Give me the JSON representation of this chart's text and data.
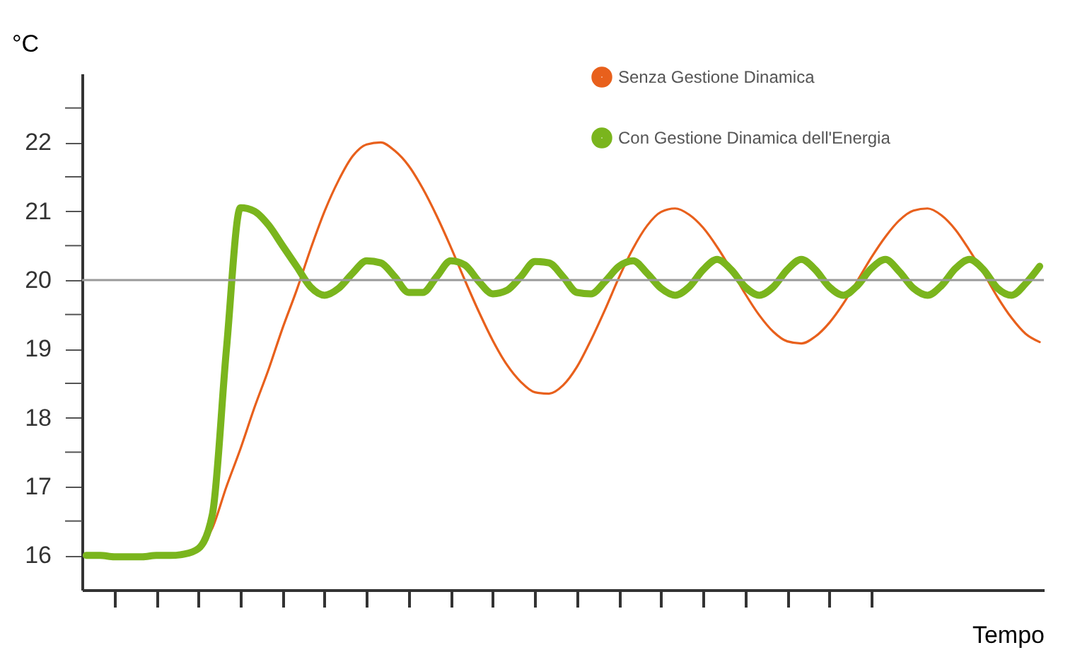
{
  "chart_data": {
    "type": "line",
    "xlabel": "Tempo",
    "ylabel": "°C",
    "categories": [
      null,
      null,
      null,
      null,
      null,
      null,
      null,
      null,
      null,
      null,
      null,
      null,
      null,
      null,
      null,
      null,
      null,
      null,
      null,
      null,
      null,
      null,
      null,
      null,
      null,
      null,
      null,
      null,
      null,
      null,
      null,
      null,
      null,
      null,
      null,
      null,
      null,
      null,
      null,
      null,
      null,
      null,
      null,
      null,
      null,
      null,
      null,
      null,
      null,
      null,
      null,
      null,
      null,
      null,
      null,
      null,
      null,
      null,
      null,
      null,
      null,
      null,
      null,
      null,
      null,
      null,
      null,
      null,
      null
    ],
    "series": [
      {
        "name": "Senza Gestione Dinamica",
        "color": "#e8601c",
        "values": [
          null,
          null,
          null,
          null,
          null,
          null,
          null,
          null,
          16.08,
          16.4,
          17.0,
          17.55,
          18.15,
          18.7,
          19.3,
          19.85,
          20.45,
          21.0,
          21.45,
          21.8,
          21.97,
          22.0,
          21.88,
          21.66,
          21.33,
          20.93,
          20.48,
          20.0,
          19.54,
          19.12,
          18.77,
          18.52,
          18.37,
          18.35,
          18.47,
          18.74,
          19.13,
          19.57,
          20.04,
          20.46,
          20.79,
          20.99,
          21.04,
          20.95,
          20.76,
          20.48,
          20.15,
          19.8,
          19.49,
          19.25,
          19.11,
          19.08,
          19.18,
          19.38,
          19.66,
          19.99,
          20.33,
          20.63,
          20.87,
          21.01,
          21.04,
          20.94,
          20.73,
          20.43,
          20.1,
          19.75,
          19.45,
          19.22,
          19.1
        ]
      },
      {
        "name": "Con Gestione Dinamica dell'Energia",
        "color": "#7ab51d",
        "values": [
          16,
          16,
          15.98,
          15.98,
          15.98,
          16,
          16,
          16.02,
          16.1,
          16.6,
          19.0,
          21.05,
          21.0,
          20.8,
          20.5,
          20.2,
          19.9,
          19.78,
          19.88,
          20.1,
          20.28,
          20.25,
          20.05,
          19.82,
          19.82,
          20.05,
          20.28,
          20.22,
          19.98,
          19.8,
          19.85,
          20.05,
          20.27,
          20.25,
          20.05,
          19.82,
          19.8,
          19.98,
          20.2,
          20.28,
          20.1,
          19.88,
          19.78,
          19.9,
          20.15,
          20.3,
          20.15,
          19.9,
          19.78,
          19.9,
          20.15,
          20.3,
          20.15,
          19.9,
          19.78,
          19.92,
          20.17,
          20.3,
          20.12,
          19.88,
          19.78,
          19.92,
          20.17,
          20.3,
          20.15,
          19.88,
          19.78,
          19.95,
          20.2
        ]
      }
    ],
    "ylim": [
      15.5,
      23
    ],
    "yticks": [
      16,
      {
        "value": 16.5,
        "label": null
      },
      17,
      {
        "value": 17.5,
        "label": null
      },
      18,
      {
        "value": 18.5,
        "label": null
      },
      19,
      {
        "value": 19.5,
        "label": null
      },
      20,
      {
        "value": 20.5,
        "label": null
      },
      21,
      {
        "value": 21.5,
        "label": null
      },
      22,
      {
        "value": 22.5,
        "label": null
      }
    ],
    "ref_lines": [
      {
        "axis": "y",
        "value": 20,
        "color": "#9a9a9a"
      }
    ],
    "tick_labels": "y",
    "grid": false,
    "legend": "top right",
    "marker": "none",
    "line_style": "solid"
  }
}
